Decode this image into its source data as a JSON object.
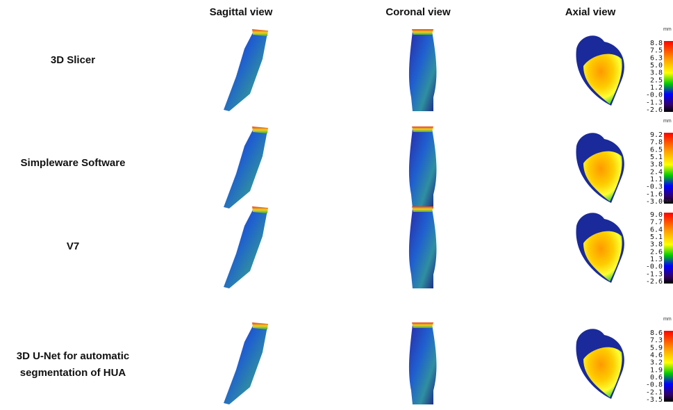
{
  "header": {
    "columns": [
      "Sagittal view",
      "Coronal view",
      "Axial view"
    ]
  },
  "rows": [
    {
      "label": [
        "3D Slicer"
      ],
      "colorbar": {
        "unit": "mm",
        "ticks": [
          "8.8",
          "7.5",
          "6.3",
          "5.0",
          "3.8",
          "2.5",
          "1.2",
          "-0.0",
          "-1.3",
          "-2.6"
        ]
      }
    },
    {
      "label": [
        "Simpleware Software"
      ],
      "colorbar": {
        "unit": "mm",
        "ticks": [
          "9.2",
          "7.8",
          "6.5",
          "5.1",
          "3.8",
          "2.4",
          "1.1",
          "-0.3",
          "-1.6",
          "-3.0"
        ]
      }
    },
    {
      "label": [
        "V7"
      ],
      "colorbar": {
        "unit": "mm",
        "ticks": [
          "9.0",
          "7.7",
          "6.4",
          "5.1",
          "3.8",
          "2.6",
          "1.3",
          "-0.0",
          "-1.3",
          "-2.6"
        ]
      }
    },
    {
      "label": [
        "3D U-Net for automatic",
        "segmentation of HUA"
      ],
      "colorbar": {
        "unit": "mm",
        "ticks": [
          "8.6",
          "7.3",
          "5.9",
          "4.6",
          "3.2",
          "1.9",
          "0.6",
          "-0.8",
          "-2.1",
          "-3.5"
        ]
      }
    }
  ]
}
